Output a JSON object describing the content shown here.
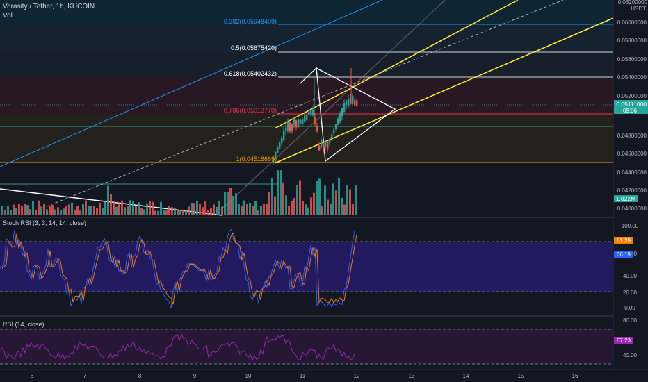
{
  "header": {
    "symbol": "Verasity / Tether, 1h, KUCOIN",
    "volume_label": "Vol"
  },
  "price_axis": {
    "currency": "USDT",
    "top_label": "0.06200000",
    "ticks": [
      "0.06000000",
      "0.05800000",
      "0.05600000",
      "0.05400000",
      "0.05200000",
      "0.04800000",
      "0.04600000",
      "0.04400000",
      "0.04200000",
      "0.04000000"
    ],
    "last_price": "0.05111000",
    "countdown": "09:06",
    "last_price_color": "#26a69a",
    "volume_value": "1.022M",
    "volume_color": "#26a69a"
  },
  "fib_levels": [
    {
      "label": "0.382(0.05948409)",
      "color": "#2196f3"
    },
    {
      "label": "0.5(0.05675420)",
      "color": "#ffffff"
    },
    {
      "label": "0.618(0.05402432)",
      "color": "#ffffff"
    },
    {
      "label": "0.786(0.05013770)",
      "color": "#f23645"
    },
    {
      "label": "1(0.04518669)",
      "color": "#ff9800"
    }
  ],
  "stoch_rsi": {
    "title": "Stoch RSI (3, 3, 14, 14, close)",
    "ticks": [
      "100.00",
      "60.00",
      "40.00",
      "20.00",
      "0.00"
    ],
    "k_value": "81.39",
    "k_color": "#f57c00",
    "d_value": "66.19",
    "d_color": "#2962ff",
    "background": "#311b92"
  },
  "rsi": {
    "title": "RSI (14, close)",
    "ticks": [
      "80.00",
      "40.00"
    ],
    "value": "57.23",
    "color": "#9c27b0"
  },
  "time_axis": {
    "labels": [
      "6",
      "7",
      "8",
      "9",
      "10",
      "11",
      "12",
      "13",
      "14",
      "15",
      "16"
    ]
  },
  "colors": {
    "up": "#26a69a",
    "down": "#ef5350",
    "trend_yellow": "#ffeb3b",
    "background": "#131722"
  }
}
